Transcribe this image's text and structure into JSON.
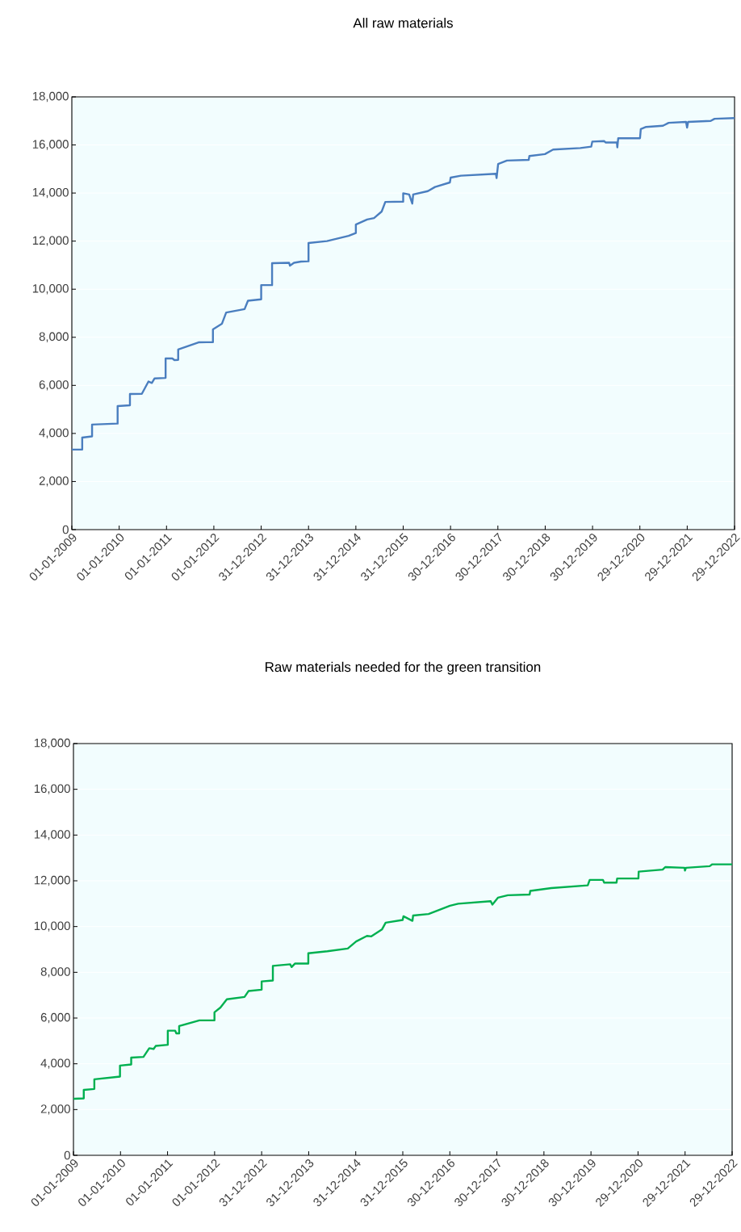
{
  "chart_data": [
    {
      "type": "line",
      "title": "All raw materials",
      "series": [
        {
          "color": "#4a7ebf",
          "x": [
            "2009-01-01",
            "2009-03-22",
            "2009-03-22",
            "2009-06-06",
            "2009-06-06",
            "2009-12-20",
            "2009-12-20",
            "2010-03-25",
            "2010-03-25",
            "2010-06-25",
            "2010-08-15",
            "2010-09-10",
            "2010-10-01",
            "2010-12-25",
            "2010-12-25",
            "2011-02-15",
            "2011-03-03",
            "2011-04-01",
            "2011-04-01",
            "2011-09-05",
            "2011-12-25",
            "2011-12-25",
            "2012-03-03",
            "2012-04-05",
            "2012-08-25",
            "2012-09-20",
            "2012-12-31",
            "2012-12-31",
            "2013-03-25",
            "2013-03-25",
            "2013-08-03",
            "2013-08-10",
            "2013-09-10",
            "2013-11-03",
            "2013-12-31",
            "2013-12-31",
            "2014-05-22",
            "2014-11-05",
            "2014-12-31",
            "2014-12-31",
            "2015-03-28",
            "2015-05-20",
            "2015-07-18",
            "2015-08-15",
            "2015-12-31",
            "2015-12-31",
            "2016-02-15",
            "2016-03-10",
            "2016-03-17",
            "2016-07-08",
            "2016-09-01",
            "2016-12-25",
            "2016-12-31",
            "2017-03-20",
            "2017-12-15",
            "2017-12-20",
            "2018-01-01",
            "2018-03-10",
            "2018-08-25",
            "2018-08-30",
            "2018-12-28",
            "2019-03-01",
            "2019-09-27",
            "2019-12-20",
            "2019-12-28",
            "2020-03-28",
            "2020-04-10",
            "2020-07-05",
            "2020-07-08",
            "2020-07-15",
            "2020-12-30",
            "2021-01-05",
            "2021-02-15",
            "2021-06-25",
            "2021-08-08",
            "2021-12-20",
            "2021-12-28",
            "2022-01-05",
            "2022-06-28",
            "2022-07-28",
            "2022-12-29"
          ],
          "values": [
            3330,
            3330,
            3830,
            3880,
            4370,
            4410,
            5140,
            5170,
            5640,
            5650,
            6160,
            6100,
            6290,
            6310,
            7120,
            7120,
            7050,
            7060,
            7490,
            7790,
            7800,
            8330,
            8560,
            9030,
            9170,
            9520,
            9580,
            10170,
            10170,
            11080,
            11100,
            10980,
            11100,
            11150,
            11160,
            11920,
            12000,
            12220,
            12340,
            12690,
            12900,
            12960,
            13230,
            13630,
            13640,
            13990,
            13940,
            13560,
            13940,
            14080,
            14250,
            14440,
            14640,
            14720,
            14800,
            14620,
            15210,
            15350,
            15380,
            15540,
            15620,
            15810,
            15870,
            15930,
            16140,
            16160,
            16100,
            16100,
            15900,
            16280,
            16280,
            16660,
            16750,
            16800,
            16920,
            16960,
            16720,
            16960,
            17000,
            17090,
            17120
          ]
        }
      ],
      "xlim": [
        "2009-01-01",
        "2022-12-29"
      ],
      "xticks": [
        {
          "value": "2009-01-01",
          "label": "01-01-2009"
        },
        {
          "value": "2010-01-01",
          "label": "01-01-2010"
        },
        {
          "value": "2011-01-01",
          "label": "01-01-2011"
        },
        {
          "value": "2012-01-01",
          "label": "01-01-2012"
        },
        {
          "value": "2012-12-31",
          "label": "31-12-2012"
        },
        {
          "value": "2013-12-31",
          "label": "31-12-2013"
        },
        {
          "value": "2014-12-31",
          "label": "31-12-2014"
        },
        {
          "value": "2015-12-31",
          "label": "31-12-2015"
        },
        {
          "value": "2016-12-30",
          "label": "30-12-2016"
        },
        {
          "value": "2017-12-30",
          "label": "30-12-2017"
        },
        {
          "value": "2018-12-30",
          "label": "30-12-2018"
        },
        {
          "value": "2019-12-30",
          "label": "30-12-2019"
        },
        {
          "value": "2020-12-29",
          "label": "29-12-2020"
        },
        {
          "value": "2021-12-29",
          "label": "29-12-2021"
        },
        {
          "value": "2022-12-29",
          "label": "29-12-2022"
        }
      ],
      "ylim": [
        0,
        18000
      ],
      "yticks": [
        0,
        {
          "value": 2000,
          "label": "2,000"
        },
        {
          "value": 4000,
          "label": "4,000"
        },
        {
          "value": 6000,
          "label": "6,000"
        },
        {
          "value": 8000,
          "label": "8,000"
        },
        {
          "value": 10000,
          "label": "10,000"
        },
        {
          "value": 12000,
          "label": "12,000"
        },
        {
          "value": 14000,
          "label": "14,000"
        },
        {
          "value": 16000,
          "label": "16,000"
        },
        {
          "value": 18000,
          "label": "18,000"
        }
      ],
      "grid": "y",
      "marker": "none",
      "line_style": "solid",
      "legend": false
    },
    {
      "type": "line",
      "title": "Raw materials needed for the green transition",
      "series": [
        {
          "color": "#00b050",
          "x": [
            "2009-01-01",
            "2009-03-22",
            "2009-03-22",
            "2009-06-12",
            "2009-06-12",
            "2009-12-28",
            "2009-12-28",
            "2010-03-25",
            "2010-03-25",
            "2010-06-28",
            "2010-08-12",
            "2010-09-15",
            "2010-10-01",
            "2011-01-03",
            "2011-01-03",
            "2011-03-01",
            "2011-03-10",
            "2011-04-01",
            "2011-04-01",
            "2011-09-05",
            "2011-12-31",
            "2011-12-31",
            "2012-02-15",
            "2012-04-05",
            "2012-08-20",
            "2012-09-20",
            "2012-12-31",
            "2012-12-31",
            "2013-03-28",
            "2013-03-28",
            "2013-08-10",
            "2013-08-20",
            "2013-09-15",
            "2013-12-28",
            "2013-12-28",
            "2014-05-25",
            "2014-10-30",
            "2015-01-03",
            "2015-03-28",
            "2015-05-01",
            "2015-07-22",
            "2015-08-20",
            "2015-12-30",
            "2016-01-05",
            "2016-03-15",
            "2016-03-20",
            "2016-07-18",
            "2016-12-31",
            "2017-03-05",
            "2017-11-12",
            "2017-11-25",
            "2018-01-07",
            "2018-03-25",
            "2018-09-10",
            "2018-09-15",
            "2019-02-25",
            "2019-12-05",
            "2019-12-20",
            "2020-04-01",
            "2020-04-10",
            "2020-07-15",
            "2020-07-20",
            "2021-01-01",
            "2021-01-03",
            "2021-07-08",
            "2021-07-28",
            "2021-12-25",
            "2021-12-28",
            "2022-01-05",
            "2022-07-08",
            "2022-07-28",
            "2022-12-29"
          ],
          "values": [
            2470,
            2490,
            2860,
            2900,
            3320,
            3440,
            3920,
            3970,
            4270,
            4300,
            4680,
            4650,
            4780,
            4830,
            5450,
            5450,
            5330,
            5330,
            5650,
            5900,
            5900,
            6250,
            6460,
            6820,
            6920,
            7180,
            7240,
            7600,
            7640,
            8280,
            8350,
            8230,
            8380,
            8380,
            8830,
            8920,
            9040,
            9350,
            9590,
            9570,
            9870,
            10170,
            10290,
            10450,
            10250,
            10480,
            10550,
            10910,
            11000,
            11110,
            10960,
            11260,
            11370,
            11400,
            11560,
            11680,
            11800,
            12040,
            12040,
            11920,
            11920,
            12100,
            12100,
            12400,
            12490,
            12600,
            12570,
            12450,
            12570,
            12640,
            12720,
            12720
          ]
        }
      ],
      "xlim": [
        "2009-01-01",
        "2022-12-29"
      ],
      "xticks": [
        {
          "value": "2009-01-01",
          "label": "01-01-2009"
        },
        {
          "value": "2010-01-01",
          "label": "01-01-2010"
        },
        {
          "value": "2011-01-01",
          "label": "01-01-2011"
        },
        {
          "value": "2012-01-01",
          "label": "01-01-2012"
        },
        {
          "value": "2012-12-31",
          "label": "31-12-2012"
        },
        {
          "value": "2013-12-31",
          "label": "31-12-2013"
        },
        {
          "value": "2014-12-31",
          "label": "31-12-2014"
        },
        {
          "value": "2015-12-31",
          "label": "31-12-2015"
        },
        {
          "value": "2016-12-30",
          "label": "30-12-2016"
        },
        {
          "value": "2017-12-30",
          "label": "30-12-2017"
        },
        {
          "value": "2018-12-30",
          "label": "30-12-2018"
        },
        {
          "value": "2019-12-30",
          "label": "30-12-2019"
        },
        {
          "value": "2020-12-29",
          "label": "29-12-2020"
        },
        {
          "value": "2021-12-29",
          "label": "29-12-2021"
        },
        {
          "value": "2022-12-29",
          "label": "29-12-2022"
        }
      ],
      "ylim": [
        0,
        18000
      ],
      "yticks": [
        0,
        {
          "value": 2000,
          "label": "2,000"
        },
        {
          "value": 4000,
          "label": "4,000"
        },
        {
          "value": 6000,
          "label": "6,000"
        },
        {
          "value": 8000,
          "label": "8,000"
        },
        {
          "value": 10000,
          "label": "10,000"
        },
        {
          "value": 12000,
          "label": "12,000"
        },
        {
          "value": 14000,
          "label": "14,000"
        },
        {
          "value": 16000,
          "label": "16,000"
        },
        {
          "value": 18000,
          "label": "18,000"
        }
      ],
      "grid": "y",
      "marker": "none",
      "line_style": "solid",
      "legend": false
    }
  ]
}
